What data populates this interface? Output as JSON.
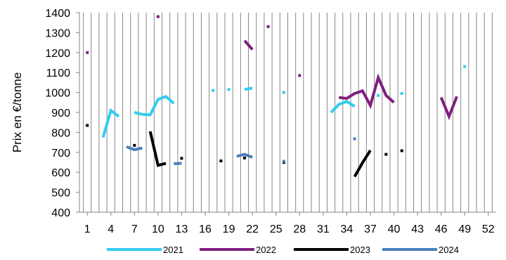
{
  "chart_data": {
    "type": "line",
    "xlabel": "",
    "ylabel": "Prix en €/tonne",
    "xlim": [
      0,
      53
    ],
    "ylim": [
      400,
      1400
    ],
    "x_ticks": [
      1,
      4,
      7,
      10,
      13,
      16,
      19,
      22,
      25,
      28,
      31,
      34,
      37,
      40,
      43,
      46,
      49,
      52
    ],
    "y_ticks": [
      400,
      500,
      600,
      700,
      800,
      900,
      1000,
      1100,
      1200,
      1300,
      1400
    ],
    "grid": "vertical",
    "legend_position": "bottom",
    "series": [
      {
        "name": "2021",
        "color": "#33ccf2",
        "points": [
          [
            3,
            775
          ],
          [
            4,
            910
          ],
          [
            5,
            880
          ],
          [
            null,
            null
          ],
          [
            7,
            900
          ],
          [
            8,
            890
          ],
          [
            9,
            888
          ],
          [
            10,
            965
          ],
          [
            11,
            980
          ],
          [
            12,
            945
          ],
          [
            null,
            null
          ],
          [
            17,
            1010
          ],
          [
            null,
            null
          ],
          [
            19,
            1015
          ],
          [
            null,
            null
          ],
          [
            21,
            1015
          ],
          [
            22,
            1022
          ],
          [
            null,
            null
          ],
          [
            26,
            1000
          ],
          [
            null,
            null
          ],
          [
            32,
            900
          ],
          [
            33,
            940
          ],
          [
            34,
            955
          ],
          [
            35,
            930
          ],
          [
            null,
            null
          ],
          [
            38,
            985
          ],
          [
            null,
            null
          ],
          [
            41,
            995
          ],
          [
            null,
            null
          ],
          [
            49,
            1130
          ]
        ]
      },
      {
        "name": "2022",
        "color": "#7f1f7f",
        "points": [
          [
            1,
            1200
          ],
          [
            null,
            null
          ],
          [
            10,
            1380
          ],
          [
            null,
            null
          ],
          [
            21,
            1260
          ],
          [
            22,
            1215
          ],
          [
            null,
            null
          ],
          [
            24,
            1330
          ],
          [
            null,
            null
          ],
          [
            28,
            1085
          ],
          [
            null,
            null
          ],
          [
            33,
            975
          ],
          [
            34,
            970
          ],
          [
            35,
            995
          ],
          [
            36,
            1008
          ],
          [
            37,
            935
          ],
          [
            38,
            1075
          ],
          [
            39,
            985
          ],
          [
            40,
            950
          ],
          [
            null,
            null
          ],
          [
            46,
            975
          ],
          [
            47,
            880
          ],
          [
            48,
            980
          ]
        ]
      },
      {
        "name": "2023",
        "color": "#000000",
        "points": [
          [
            1,
            835
          ],
          [
            null,
            null
          ],
          [
            7,
            735
          ],
          [
            null,
            null
          ],
          [
            9,
            805
          ],
          [
            10,
            635
          ],
          [
            11,
            645
          ],
          [
            null,
            null
          ],
          [
            13,
            670
          ],
          [
            null,
            null
          ],
          [
            18,
            657
          ],
          [
            null,
            null
          ],
          [
            21,
            672
          ],
          [
            null,
            null
          ],
          [
            26,
            650
          ],
          [
            null,
            null
          ],
          [
            35,
            578
          ],
          [
            36,
            648
          ],
          [
            37,
            710
          ],
          [
            null,
            null
          ],
          [
            39,
            690
          ],
          [
            null,
            null
          ],
          [
            41,
            708
          ]
        ]
      },
      {
        "name": "2024",
        "color": "#4a7ebb",
        "points": [
          [
            6,
            728
          ],
          [
            7,
            713
          ],
          [
            8,
            722
          ],
          [
            null,
            null
          ],
          [
            12,
            643
          ],
          [
            13,
            645
          ],
          [
            null,
            null
          ],
          [
            20,
            680
          ],
          [
            21,
            690
          ],
          [
            22,
            675
          ],
          [
            null,
            null
          ],
          [
            26,
            655
          ],
          [
            null,
            null
          ],
          [
            35,
            768
          ]
        ]
      }
    ]
  }
}
